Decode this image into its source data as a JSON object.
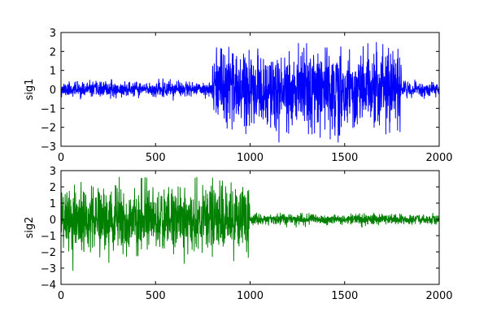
{
  "chart_data": [
    {
      "type": "line",
      "title": "",
      "xlabel": "",
      "ylabel": "sig1",
      "xlim": [
        0,
        2000
      ],
      "ylim": [
        -3,
        3
      ],
      "grid": false,
      "xticks": [
        "0",
        "500",
        "1000",
        "1500",
        "2000"
      ],
      "yticks": [
        "3",
        "2",
        "1",
        "0",
        "−1",
        "−2",
        "−3"
      ],
      "series": [
        {
          "color": "#0000ff",
          "n_points": 2000,
          "segments": [
            {
              "x_start": 0,
              "x_end": 800,
              "std": 0.18,
              "min": -0.6,
              "max": 0.6
            },
            {
              "x_start": 800,
              "x_end": 1800,
              "std": 1.0,
              "min": -2.8,
              "max": 2.5
            },
            {
              "x_start": 1800,
              "x_end": 2000,
              "std": 0.18,
              "min": -0.6,
              "max": 0.6
            }
          ]
        }
      ]
    },
    {
      "type": "line",
      "title": "",
      "xlabel": "",
      "ylabel": "sig2",
      "xlim": [
        0,
        2000
      ],
      "ylim": [
        -4,
        3
      ],
      "grid": false,
      "xticks": [
        "0",
        "500",
        "1000",
        "1500",
        "2000"
      ],
      "yticks": [
        "3",
        "2",
        "1",
        "0",
        "−1",
        "−2",
        "−3",
        "−4"
      ],
      "series": [
        {
          "color": "#008000",
          "n_points": 2000,
          "segments": [
            {
              "x_start": 0,
              "x_end": 1000,
              "std": 1.0,
              "min": -3.2,
              "max": 2.6
            },
            {
              "x_start": 1000,
              "x_end": 2000,
              "std": 0.15,
              "min": -0.5,
              "max": 0.5
            }
          ]
        }
      ]
    }
  ]
}
